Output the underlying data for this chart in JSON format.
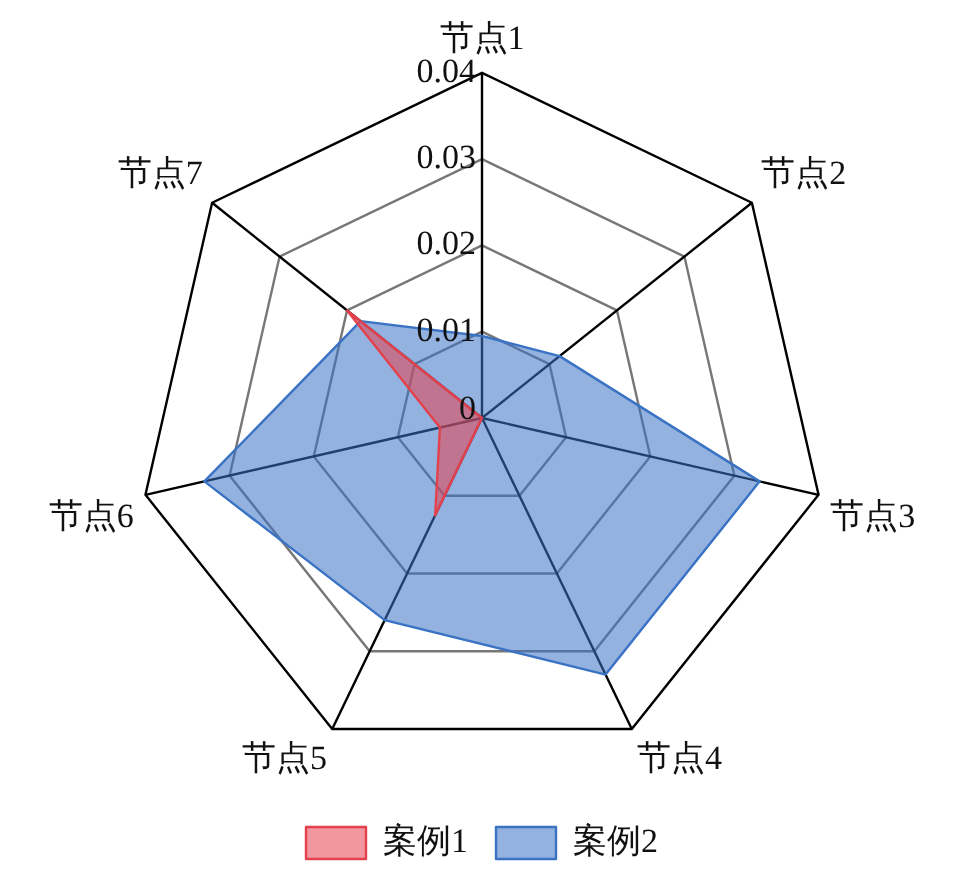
{
  "chart_data": {
    "type": "radar",
    "categories": [
      "节点1",
      "节点2",
      "节点3",
      "节点4",
      "节点5",
      "节点6",
      "节点7"
    ],
    "series": [
      {
        "name": "案例1",
        "color": "#e5414d",
        "values": [
          0,
          0,
          0,
          0,
          0.0125,
          0.005,
          0.02
        ]
      },
      {
        "name": "案例2",
        "color": "#3a72c4",
        "values": [
          0.0095,
          0.0115,
          0.033,
          0.033,
          0.026,
          0.033,
          0.018
        ]
      }
    ],
    "ylim": [
      0,
      0.04
    ],
    "yticks": [
      0,
      0.01,
      0.02,
      0.03,
      0.04
    ],
    "grid": true,
    "legend": "bottom"
  }
}
